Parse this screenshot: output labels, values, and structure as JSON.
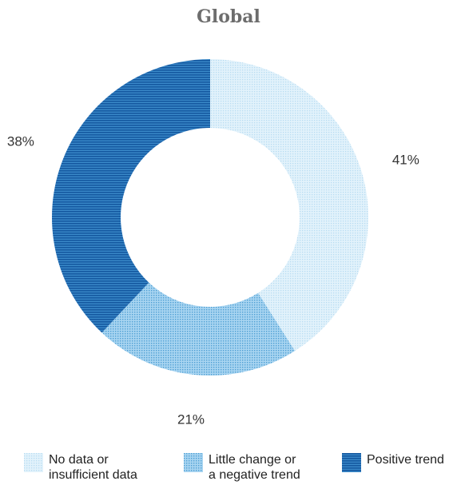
{
  "chart_data": {
    "type": "pie",
    "style": "donut",
    "title": "Global",
    "categories": [
      "No data or\ninsufficient data",
      "Little change or\na negative trend",
      "Positive trend"
    ],
    "values": [
      41,
      21,
      38
    ],
    "labels": [
      "41%",
      "21%",
      "38%"
    ],
    "colors": [
      "#cfe8f6",
      "#8cc6ea",
      "#1f6fb2"
    ],
    "legend_position": "bottom"
  }
}
